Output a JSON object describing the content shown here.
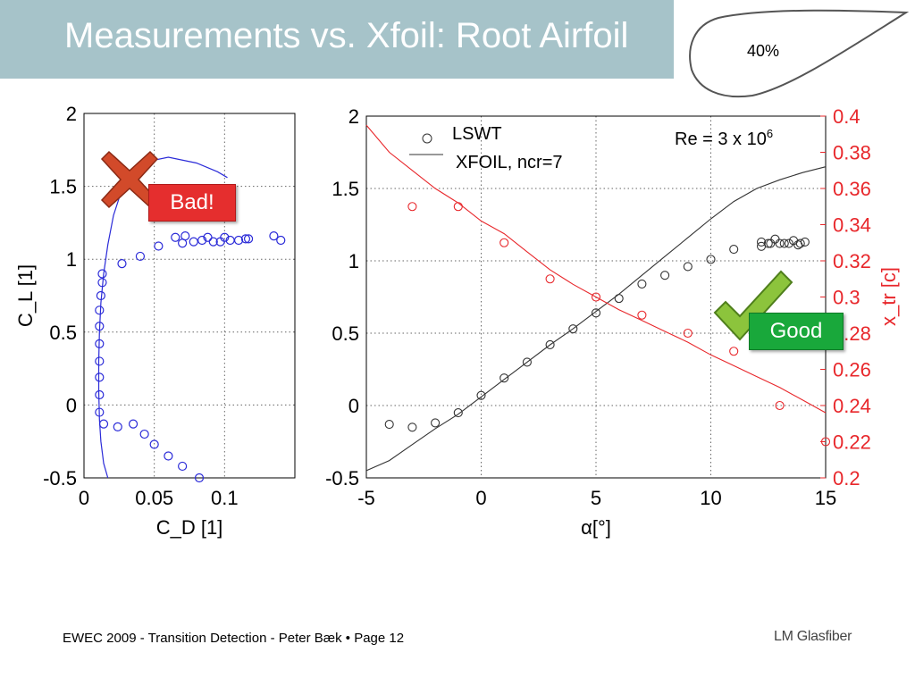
{
  "header": {
    "title": "Measurements vs. Xfoil: Root Airfoil",
    "airfoil_label": "40%"
  },
  "footer": {
    "text": "EWEC 2009 - Transition Detection - Peter Bæk • Page 12",
    "logo": "LM Glasfiber"
  },
  "colors": {
    "title_bar": "#a6c3c9",
    "polar_series": "#2b2bd8",
    "lift_curve": "#333333",
    "transition": "#e8272b",
    "bad_label": "#e52e2e",
    "good_label": "#19a83b",
    "cross_icon": "#d24a2a",
    "check_icon": "#8cc43c"
  },
  "annotations": {
    "bad": "Bad!",
    "good": "Good",
    "bad_icon": "cross-icon",
    "good_icon": "check-icon"
  },
  "chart_data": [
    {
      "type": "scatter",
      "xlabel": "C_D [1]",
      "ylabel": "C_L [1]",
      "xlim": [
        0,
        0.15
      ],
      "ylim": [
        -0.5,
        2
      ],
      "x_ticks": [
        "0",
        "0.05",
        "0.1"
      ],
      "y_ticks": [
        "-0.5",
        "0",
        "0.5",
        "1",
        "1.5",
        "2"
      ],
      "grid": true,
      "series": [
        {
          "kind": "markers",
          "points": [
            [
              0.011,
              -0.05
            ],
            [
              0.014,
              -0.13
            ],
            [
              0.024,
              -0.15
            ],
            [
              0.035,
              -0.13
            ],
            [
              0.043,
              -0.2
            ],
            [
              0.05,
              -0.27
            ],
            [
              0.06,
              -0.35
            ],
            [
              0.07,
              -0.42
            ],
            [
              0.082,
              -0.5
            ],
            [
              0.011,
              0.07
            ],
            [
              0.011,
              0.19
            ],
            [
              0.011,
              0.3
            ],
            [
              0.011,
              0.42
            ],
            [
              0.011,
              0.54
            ],
            [
              0.011,
              0.65
            ],
            [
              0.012,
              0.75
            ],
            [
              0.013,
              0.84
            ],
            [
              0.013,
              0.9
            ],
            [
              0.027,
              0.97
            ],
            [
              0.04,
              1.02
            ],
            [
              0.053,
              1.09
            ],
            [
              0.065,
              1.15
            ],
            [
              0.07,
              1.11
            ],
            [
              0.072,
              1.16
            ],
            [
              0.078,
              1.12
            ],
            [
              0.084,
              1.13
            ],
            [
              0.088,
              1.15
            ],
            [
              0.092,
              1.12
            ],
            [
              0.097,
              1.12
            ],
            [
              0.1,
              1.15
            ],
            [
              0.104,
              1.13
            ],
            [
              0.11,
              1.13
            ],
            [
              0.115,
              1.14
            ],
            [
              0.117,
              1.14
            ],
            [
              0.135,
              1.16
            ],
            [
              0.14,
              1.13
            ]
          ]
        },
        {
          "kind": "line",
          "points": [
            [
              0.017,
              -0.5
            ],
            [
              0.014,
              -0.4
            ],
            [
              0.012,
              -0.25
            ],
            [
              0.011,
              -0.1
            ],
            [
              0.0105,
              0.1
            ],
            [
              0.0105,
              0.3
            ],
            [
              0.011,
              0.5
            ],
            [
              0.012,
              0.7
            ],
            [
              0.014,
              0.9
            ],
            [
              0.017,
              1.1
            ],
            [
              0.021,
              1.3
            ],
            [
              0.026,
              1.45
            ],
            [
              0.033,
              1.58
            ],
            [
              0.045,
              1.67
            ],
            [
              0.06,
              1.7
            ],
            [
              0.08,
              1.66
            ],
            [
              0.095,
              1.6
            ],
            [
              0.102,
              1.56
            ]
          ]
        }
      ]
    },
    {
      "type": "scatter",
      "xlabel": "α[°]",
      "ylabel": "",
      "y2label": "x_tr [c]",
      "xlim": [
        -5,
        15
      ],
      "ylim": [
        -0.5,
        2
      ],
      "y2lim": [
        0.2,
        0.4
      ],
      "x_ticks": [
        "-5",
        "0",
        "5",
        "10",
        "15"
      ],
      "y_ticks": [
        "-0.5",
        "0",
        "0.5",
        "1",
        "1.5",
        "2"
      ],
      "y2_ticks": [
        "0.2",
        "0.22",
        "0.24",
        "0.26",
        "0.28",
        "0.3",
        "0.32",
        "0.34",
        "0.36",
        "0.38",
        "0.4"
      ],
      "grid": true,
      "legend": [
        "LSWT",
        "XFOIL, ncr=7"
      ],
      "legend_position": "top-left",
      "annotation": "Re = 3 x 10",
      "annotation_exponent": "6",
      "series": [
        {
          "name": "LSWT",
          "axis": "left",
          "kind": "markers",
          "points": [
            [
              -4,
              -0.13
            ],
            [
              -3,
              -0.15
            ],
            [
              -2,
              -0.12
            ],
            [
              -1,
              -0.05
            ],
            [
              0,
              0.07
            ],
            [
              1,
              0.19
            ],
            [
              2,
              0.3
            ],
            [
              3,
              0.42
            ],
            [
              4,
              0.53
            ],
            [
              5,
              0.64
            ],
            [
              6,
              0.74
            ],
            [
              7,
              0.84
            ],
            [
              8,
              0.9
            ],
            [
              9,
              0.96
            ],
            [
              10,
              1.01
            ],
            [
              11,
              1.08
            ],
            [
              12.2,
              1.1
            ],
            [
              12.5,
              1.12
            ],
            [
              12.8,
              1.15
            ],
            [
              13.2,
              1.12
            ],
            [
              13.6,
              1.14
            ],
            [
              13.9,
              1.12
            ],
            [
              14.1,
              1.13
            ],
            [
              12.2,
              1.13
            ],
            [
              12.6,
              1.12
            ],
            [
              13,
              1.12
            ],
            [
              13.4,
              1.12
            ],
            [
              13.8,
              1.11
            ]
          ]
        },
        {
          "name": "XFOIL, ncr=7",
          "axis": "left",
          "kind": "line",
          "points": [
            [
              -5,
              -0.45
            ],
            [
              -4,
              -0.38
            ],
            [
              -3,
              -0.27
            ],
            [
              -2,
              -0.16
            ],
            [
              -1,
              -0.06
            ],
            [
              0,
              0.06
            ],
            [
              1,
              0.18
            ],
            [
              2,
              0.3
            ],
            [
              3,
              0.42
            ],
            [
              4,
              0.53
            ],
            [
              5,
              0.65
            ],
            [
              6,
              0.77
            ],
            [
              7,
              0.9
            ],
            [
              8,
              1.03
            ],
            [
              9,
              1.16
            ],
            [
              10,
              1.29
            ],
            [
              11,
              1.41
            ],
            [
              12,
              1.5
            ],
            [
              13,
              1.56
            ],
            [
              14,
              1.61
            ],
            [
              15,
              1.65
            ]
          ]
        },
        {
          "axis": "right",
          "kind": "markers",
          "points": [
            [
              -3,
              0.35
            ],
            [
              -1,
              0.35
            ],
            [
              1,
              0.33
            ],
            [
              3,
              0.31
            ],
            [
              5,
              0.3
            ],
            [
              7,
              0.29
            ],
            [
              9,
              0.28
            ],
            [
              11,
              0.27
            ],
            [
              13,
              0.24
            ],
            [
              15,
              0.22
            ]
          ]
        },
        {
          "axis": "right",
          "kind": "line",
          "points": [
            [
              -5,
              0.395
            ],
            [
              -4,
              0.38
            ],
            [
              -3,
              0.37
            ],
            [
              -2,
              0.36
            ],
            [
              -1,
              0.352
            ],
            [
              0,
              0.342
            ],
            [
              1,
              0.335
            ],
            [
              2,
              0.325
            ],
            [
              3,
              0.315
            ],
            [
              4,
              0.307
            ],
            [
              5,
              0.3
            ],
            [
              6,
              0.293
            ],
            [
              7,
              0.287
            ],
            [
              8,
              0.281
            ],
            [
              9,
              0.275
            ],
            [
              10,
              0.268
            ],
            [
              11,
              0.262
            ],
            [
              12,
              0.256
            ],
            [
              13,
              0.25
            ],
            [
              14,
              0.243
            ],
            [
              15,
              0.236
            ]
          ]
        }
      ]
    }
  ]
}
